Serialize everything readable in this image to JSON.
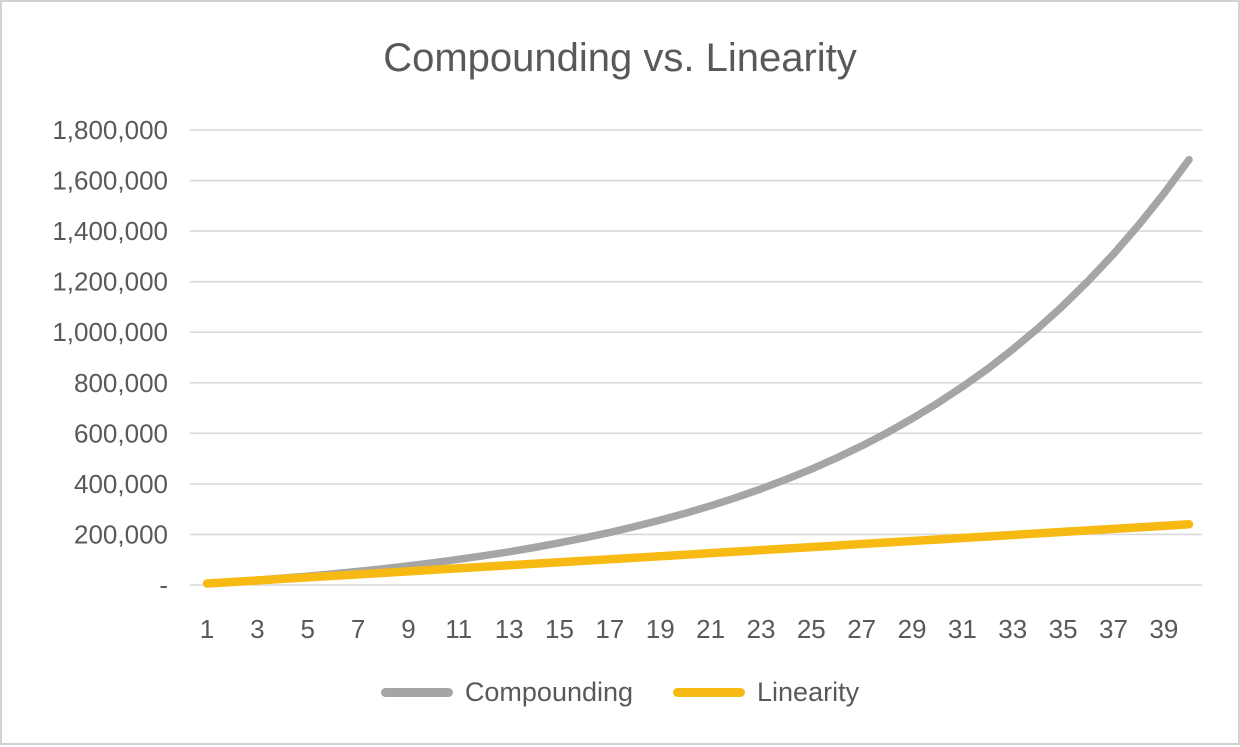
{
  "colors": {
    "series_gray": "#A5A5A5",
    "series_gold": "#F7BA12",
    "text": "#595959",
    "gridline": "#D9D9D9",
    "frame_border": "#D2D2D2",
    "background": "#FFFFFF"
  },
  "chart_data": {
    "type": "line",
    "title": "Compounding vs. Linearity",
    "xlabel": "",
    "ylabel": "",
    "grid": true,
    "legend_position": "bottom",
    "ylim": [
      0,
      1800000
    ],
    "y_tick_interval": 200000,
    "y_tick_labels": [
      "-",
      "200,000",
      "400,000",
      "600,000",
      "800,000",
      "1,000,000",
      "1,200,000",
      "1,400,000",
      "1,600,000",
      "1,800,000"
    ],
    "x": [
      1,
      2,
      3,
      4,
      5,
      6,
      7,
      8,
      9,
      10,
      11,
      12,
      13,
      14,
      15,
      16,
      17,
      18,
      19,
      20,
      21,
      22,
      23,
      24,
      25,
      26,
      27,
      28,
      29,
      30,
      31,
      32,
      33,
      34,
      35,
      36,
      37,
      38,
      39,
      40
    ],
    "x_tick_labels": [
      "1",
      "3",
      "5",
      "7",
      "9",
      "11",
      "13",
      "15",
      "17",
      "19",
      "21",
      "23",
      "25",
      "27",
      "29",
      "31",
      "33",
      "35",
      "37",
      "39"
    ],
    "series": [
      {
        "name": "Compounding",
        "color": "#A5A5A5",
        "values": [
          6000,
          12500,
          19500,
          27200,
          35400,
          44400,
          54000,
          64500,
          75900,
          88200,
          101500,
          115900,
          131500,
          148400,
          166800,
          186600,
          208100,
          231400,
          256600,
          283900,
          313400,
          345500,
          380100,
          417700,
          458300,
          502400,
          550100,
          601700,
          657700,
          718300,
          783900,
          854900,
          931900,
          1015300,
          1105500,
          1203300,
          1309200,
          1423800,
          1548000,
          1682500
        ]
      },
      {
        "name": "Linearity",
        "color": "#F7BA12",
        "values": [
          6000,
          12000,
          18000,
          24000,
          30000,
          36000,
          42000,
          48000,
          54000,
          60000,
          66000,
          72000,
          78000,
          84000,
          90000,
          96000,
          102000,
          108000,
          114000,
          120000,
          126000,
          132000,
          138000,
          144000,
          150000,
          156000,
          162000,
          168000,
          174000,
          180000,
          186000,
          192000,
          198000,
          204000,
          210000,
          216000,
          222000,
          228000,
          234000,
          240000
        ]
      }
    ]
  }
}
